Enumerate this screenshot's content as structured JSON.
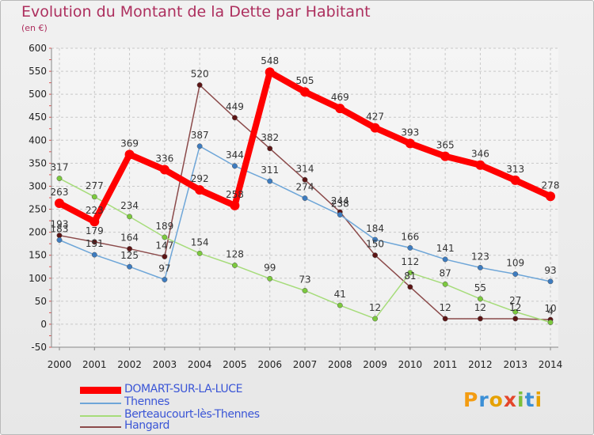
{
  "header": {
    "title": "Evolution du Montant de la Dette par Habitant",
    "subtitle": "(en €)"
  },
  "logo": {
    "text": "Proxiti",
    "colors": [
      "#f39c12",
      "#3b8fd6",
      "#e6a100",
      "#e4462b",
      "#7cbf3b",
      "#3b8fd6",
      "#e6a100"
    ]
  },
  "chart_data": {
    "type": "line",
    "title": "Evolution du Montant de la Dette par Habitant",
    "ylabel": "(en €)",
    "xlabel": "",
    "ylim": [
      -50,
      600
    ],
    "yticks": [
      -50,
      0,
      50,
      100,
      150,
      200,
      250,
      300,
      350,
      400,
      450,
      500,
      550,
      600
    ],
    "grid": true,
    "legend_position": "bottom-left",
    "categories": [
      "2000",
      "2001",
      "2002",
      "2003",
      "2004",
      "2005",
      "2006",
      "2007",
      "2008",
      "2009",
      "2010",
      "2011",
      "2012",
      "2013",
      "2014"
    ],
    "series": [
      {
        "name": "DOMART-SUR-LA-LUCE",
        "color": "#ff0000",
        "dot": "#ff0000",
        "values": [
          263,
          223,
          369,
          336,
          292,
          258,
          548,
          505,
          469,
          427,
          393,
          365,
          346,
          313,
          278
        ]
      },
      {
        "name": "Thennes",
        "color": "#6ea6d8",
        "dot": "#3d7cc0",
        "values": [
          183,
          151,
          125,
          97,
          387,
          344,
          311,
          274,
          238,
          184,
          166,
          141,
          123,
          109,
          93
        ]
      },
      {
        "name": "Berteaucourt-lès-Thennes",
        "color": "#a6dc7a",
        "dot": "#7cc93e",
        "values": [
          317,
          277,
          234,
          189,
          154,
          128,
          99,
          73,
          41,
          12,
          112,
          87,
          55,
          27,
          4
        ]
      },
      {
        "name": "Hangard",
        "color": "#8b4a4a",
        "dot": "#5c1414",
        "values": [
          193,
          179,
          164,
          147,
          520,
          449,
          382,
          314,
          244,
          150,
          81,
          12,
          12,
          12,
          10
        ]
      }
    ]
  }
}
